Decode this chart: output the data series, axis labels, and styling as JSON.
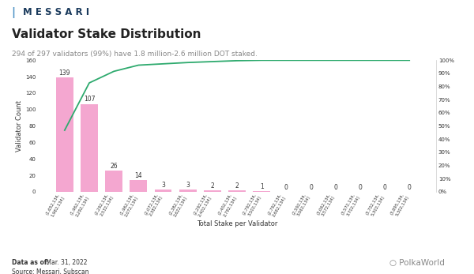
{
  "title": "Validator Stake Distribution",
  "subtitle": "294 of 297 validators (99%) have 1.8 million-2.6 million DOT staked.",
  "xlabel": "Total Stake per Validator",
  "ylabel_left": "Validator Count",
  "bar_color": "#f4a7d0",
  "line_color": "#2eaa6e",
  "x_labels": [
    "(1,652,134,\n1,962,134]",
    "(1,962,134,\n2,292,134]",
    "(2,292,134,\n2,532,134]",
    "(1,962,134,\n2,072,134]",
    "(2,072,134,\n2,382,134]",
    "(2,382,134,\n2,622,134]",
    "(2,292,134,\n2,402,134]",
    "(2,402,134,\n2,792,134]",
    "(2,792,134,\n3,502,134]",
    "(2,792,134,\n2,662,134]",
    "(2,592,134,\n3,062,134]",
    "(3,062,134,\n3,572,134]",
    "(3,572,134,\n3,702,134]",
    "(3,702,134,\n5,302,134]",
    "(3,895,134,\n5,302,134]"
  ],
  "counts": [
    139,
    107,
    26,
    14,
    3,
    3,
    2,
    2,
    1,
    0,
    0,
    0,
    0,
    0,
    0
  ],
  "cumulative_pct": [
    46.8,
    82.8,
    91.6,
    96.3,
    97.3,
    98.3,
    99.0,
    99.7,
    100.0,
    100.0,
    100.0,
    100.0,
    100.0,
    100.0,
    100.0
  ],
  "ylim_left": [
    0,
    160
  ],
  "ylim_right": [
    0,
    100
  ],
  "yticks_left": [
    0,
    20,
    40,
    60,
    80,
    100,
    120,
    140,
    160
  ],
  "yticks_right": [
    0,
    10,
    20,
    30,
    40,
    50,
    60,
    70,
    80,
    90,
    100
  ],
  "data_as_of": "Data as of:",
  "data_as_of_date": " Mar. 31, 2022",
  "source": "Source: Messari, Subscan",
  "background_color": "#ffffff",
  "text_color": "#333333",
  "gray_text": "#888888",
  "title_fontsize": 11,
  "subtitle_fontsize": 6.5,
  "label_fontsize": 6,
  "tick_fontsize": 5,
  "bar_label_fontsize": 5.5,
  "messari_color": "#1a3a5c"
}
